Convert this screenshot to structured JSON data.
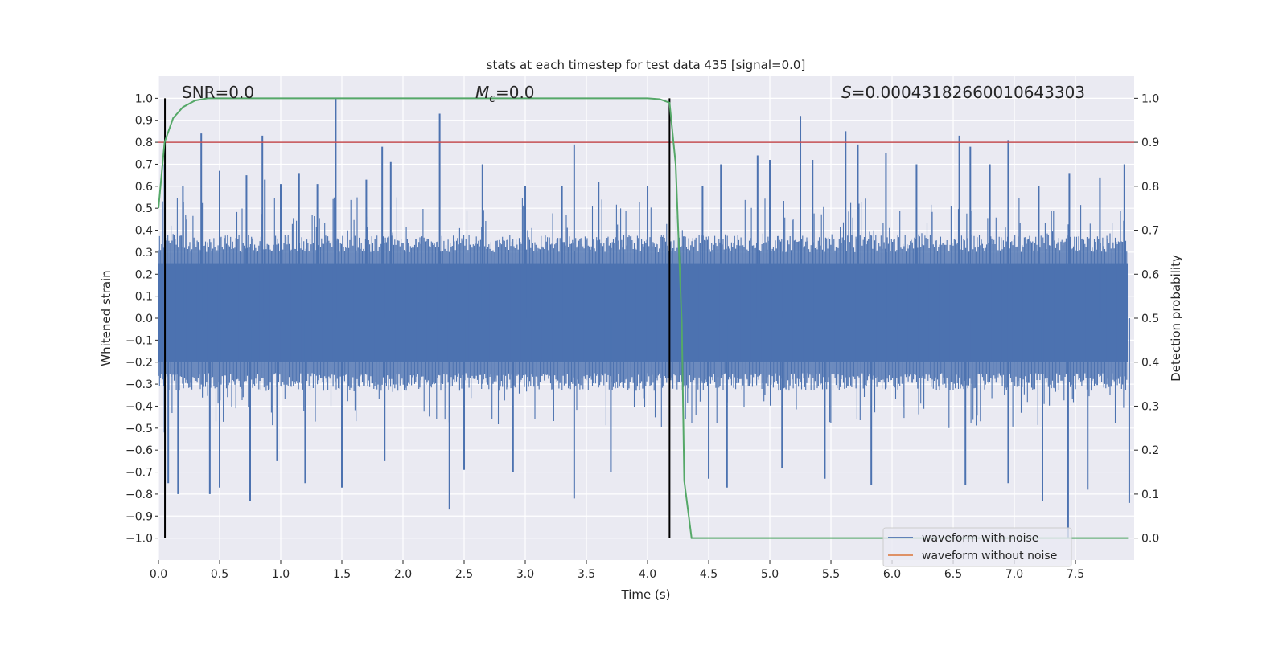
{
  "chart_data": {
    "type": "line",
    "title": "stats at each timestep for test data 435 [signal=0.0]",
    "xlabel": "Time (s)",
    "ylabel": "Whitened strain",
    "y2label": "Detection probability",
    "xlim": [
      0,
      7.98
    ],
    "ylim": [
      -1.1,
      1.1
    ],
    "y2lim": [
      -0.05,
      1.05
    ],
    "xticks": [
      "0.0",
      "0.5",
      "1.0",
      "1.5",
      "2.0",
      "2.5",
      "3.0",
      "3.5",
      "4.0",
      "4.5",
      "5.0",
      "5.5",
      "6.0",
      "6.5",
      "7.0",
      "7.5"
    ],
    "yticks": [
      "1.0",
      "0.9",
      "0.8",
      "0.7",
      "0.6",
      "0.5",
      "0.4",
      "0.3",
      "0.2",
      "0.1",
      "0.0",
      "−0.1",
      "−0.2",
      "−0.3",
      "−0.4",
      "−0.5",
      "−0.6",
      "−0.7",
      "−0.8",
      "−0.9",
      "−1.0"
    ],
    "y2ticks": [
      "1.0",
      "0.9",
      "0.8",
      "0.7",
      "0.6",
      "0.5",
      "0.4",
      "0.3",
      "0.2",
      "0.1",
      "0.0"
    ],
    "grid": true,
    "annotations": {
      "snr": "SNR=0.0",
      "mc_symbol": "M",
      "mc_sub": "c",
      "mc_value": "=0.0",
      "s_symbol": "S",
      "s_value": "=0.00043182660010643303"
    },
    "threshold": {
      "value": 0.8,
      "color": "#C44E52"
    },
    "vertical_markers": [
      0.053,
      4.18
    ],
    "legend": {
      "placement": "lower-right",
      "entries": [
        {
          "label": "waveform with noise",
          "color": "#4C72B0"
        },
        {
          "label": "waveform without noise",
          "color": "#DD8452"
        }
      ]
    },
    "series": [
      {
        "name": "waveform with noise",
        "color": "#4C72B0",
        "band": [
          -0.3,
          0.35
        ],
        "upper_peaks": [
          [
            0.05,
            0.7
          ],
          [
            0.2,
            0.6
          ],
          [
            0.35,
            0.84
          ],
          [
            0.5,
            0.67
          ],
          [
            0.72,
            0.65
          ],
          [
            0.85,
            0.83
          ],
          [
            0.87,
            0.63
          ],
          [
            1.0,
            0.61
          ],
          [
            1.15,
            0.66
          ],
          [
            1.3,
            0.61
          ],
          [
            1.45,
            1.0
          ],
          [
            1.7,
            0.63
          ],
          [
            1.83,
            0.78
          ],
          [
            1.9,
            0.71
          ],
          [
            2.3,
            0.93
          ],
          [
            2.65,
            0.7
          ],
          [
            3.0,
            0.6
          ],
          [
            3.3,
            0.6
          ],
          [
            3.4,
            0.79
          ],
          [
            3.6,
            0.62
          ],
          [
            4.0,
            0.6
          ],
          [
            4.45,
            0.6
          ],
          [
            4.6,
            0.7
          ],
          [
            4.9,
            0.74
          ],
          [
            5.0,
            0.72
          ],
          [
            5.25,
            0.92
          ],
          [
            5.35,
            0.72
          ],
          [
            5.62,
            0.85
          ],
          [
            5.72,
            0.79
          ],
          [
            5.95,
            0.75
          ],
          [
            6.2,
            0.7
          ],
          [
            6.55,
            0.83
          ],
          [
            6.64,
            0.78
          ],
          [
            6.8,
            0.7
          ],
          [
            6.95,
            0.81
          ],
          [
            7.2,
            0.6
          ],
          [
            7.45,
            0.66
          ],
          [
            7.7,
            0.64
          ],
          [
            7.9,
            0.7
          ]
        ],
        "lower_peaks": [
          [
            0.05,
            -0.52
          ],
          [
            0.08,
            -0.75
          ],
          [
            0.16,
            -0.8
          ],
          [
            0.42,
            -0.8
          ],
          [
            0.5,
            -0.77
          ],
          [
            0.75,
            -0.83
          ],
          [
            0.97,
            -0.65
          ],
          [
            1.2,
            -0.75
          ],
          [
            1.5,
            -0.77
          ],
          [
            1.85,
            -0.65
          ],
          [
            2.38,
            -0.87
          ],
          [
            2.5,
            -0.69
          ],
          [
            2.9,
            -0.7
          ],
          [
            3.4,
            -0.82
          ],
          [
            3.7,
            -0.7
          ],
          [
            4.5,
            -0.73
          ],
          [
            4.65,
            -0.77
          ],
          [
            5.1,
            -0.68
          ],
          [
            5.45,
            -0.73
          ],
          [
            5.83,
            -0.76
          ],
          [
            6.6,
            -0.76
          ],
          [
            6.95,
            -0.75
          ],
          [
            7.23,
            -0.83
          ],
          [
            7.44,
            -1.0
          ],
          [
            7.6,
            -0.78
          ],
          [
            7.94,
            -0.84
          ]
        ]
      },
      {
        "name": "waveform without noise",
        "color": "#DD8452",
        "x": [],
        "y": []
      },
      {
        "name": "detection probability",
        "color": "#55A868",
        "axis": "right",
        "x": [
          0,
          0.05,
          0.12,
          0.2,
          0.3,
          0.4,
          4.0,
          4.1,
          4.18,
          4.23,
          4.28,
          4.3,
          4.36,
          4.4,
          7.93
        ],
        "y": [
          0.75,
          0.9,
          0.955,
          0.98,
          0.995,
          1.0,
          1.0,
          0.998,
          0.99,
          0.85,
          0.49,
          0.13,
          0.0,
          0.0,
          0.0
        ]
      }
    ]
  }
}
